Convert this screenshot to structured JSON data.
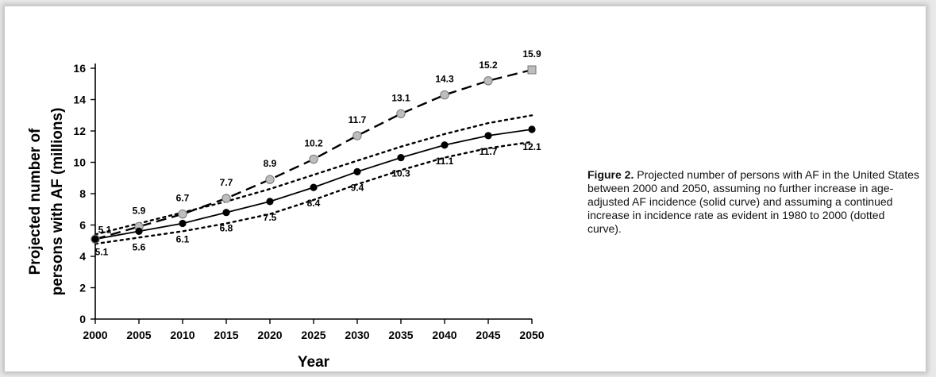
{
  "chart_data": {
    "type": "line",
    "xlabel": "Year",
    "ylabel_line1": "Projected number of",
    "ylabel_line2": "persons with AF (millions)",
    "x": [
      2000,
      2005,
      2010,
      2015,
      2020,
      2025,
      2030,
      2035,
      2040,
      2045,
      2050
    ],
    "x_tick_labels": [
      "2000",
      "2005",
      "2010",
      "2015",
      "2020",
      "2025",
      "2030",
      "2035",
      "2040",
      "2045",
      "2050"
    ],
    "y_ticks": [
      0,
      2,
      4,
      6,
      8,
      10,
      12,
      14,
      16
    ],
    "xlim": [
      2000,
      2050
    ],
    "ylim": [
      0,
      16
    ],
    "grid": false,
    "series": [
      {
        "style": "solid line, black markers",
        "color": "#000000",
        "marker_fill": "#000000",
        "values": [
          5.1,
          5.6,
          6.1,
          6.8,
          7.5,
          8.4,
          9.4,
          10.3,
          11.1,
          11.7,
          12.1
        ],
        "labels": [
          "5.1",
          "5.6",
          "6.1",
          "6.8",
          "7.5",
          "8.4",
          "9.4",
          "10.3",
          "11.1",
          "11.7",
          "12.1"
        ]
      },
      {
        "style": "dashed line, gray markers",
        "color": "#000000",
        "marker_fill": "#bdbdbd",
        "values": [
          5.1,
          5.9,
          6.7,
          7.7,
          8.9,
          10.2,
          11.7,
          13.1,
          14.3,
          15.2,
          15.9
        ],
        "labels": [
          "5.1",
          "5.9",
          "6.7",
          "7.7",
          "8.9",
          "10.2",
          "11.7",
          "13.1",
          "14.3",
          "15.2",
          "15.9"
        ]
      },
      {
        "style": "dotted upper bound",
        "color": "#000000",
        "values": [
          5.4,
          6.1,
          6.8,
          7.5,
          8.3,
          9.2,
          10.1,
          11.0,
          11.8,
          12.5,
          13.0
        ]
      },
      {
        "style": "dotted lower bound",
        "color": "#000000",
        "values": [
          4.8,
          5.2,
          5.6,
          6.1,
          6.7,
          7.6,
          8.6,
          9.5,
          10.3,
          10.9,
          11.3
        ]
      }
    ]
  },
  "caption": {
    "figure_label": "Figure 2.",
    "text": " Projected number of persons with AF in the United States between 2000 and 2050, assuming no further increase in age-adjusted AF incidence (solid curve) and assuming a continued increase in incidence rate as evident in 1980 to 2000 (dotted curve)."
  }
}
